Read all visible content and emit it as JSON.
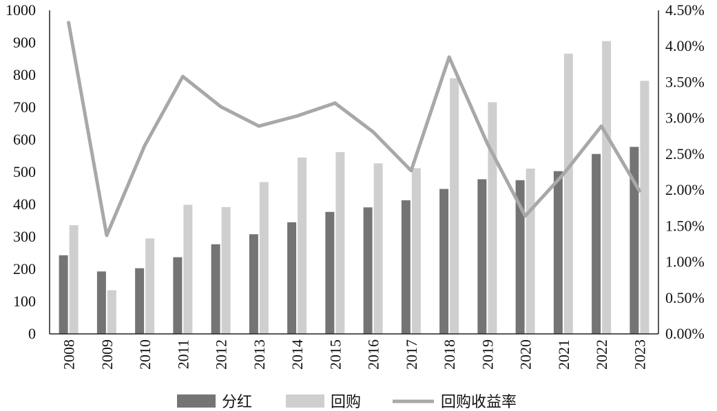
{
  "chart_data": {
    "type": "bar",
    "categories": [
      "2008",
      "2009",
      "2010",
      "2011",
      "2012",
      "2013",
      "2014",
      "2015",
      "2016",
      "2017",
      "2018",
      "2019",
      "2020",
      "2021",
      "2022",
      "2023"
    ],
    "series": [
      {
        "name": "分红",
        "type": "bar",
        "axis": "left",
        "color": "#747474",
        "values": [
          243,
          193,
          203,
          237,
          277,
          308,
          345,
          377,
          391,
          413,
          448,
          478,
          475,
          503,
          556,
          578
        ]
      },
      {
        "name": "回购",
        "type": "bar",
        "axis": "left",
        "color": "#cfcfcf",
        "values": [
          336,
          135,
          295,
          399,
          392,
          469,
          545,
          562,
          527,
          512,
          790,
          716,
          511,
          866,
          905,
          782
        ]
      },
      {
        "name": "回购收益率",
        "type": "line",
        "axis": "right",
        "color": "#a8a8a8",
        "values": [
          0.0433,
          0.0137,
          0.0262,
          0.0358,
          0.0316,
          0.0289,
          0.0303,
          0.0321,
          0.0281,
          0.0227,
          0.0385,
          0.0265,
          0.0164,
          0.0222,
          0.0289,
          0.0199
        ]
      }
    ],
    "ylim": [
      0,
      1000
    ],
    "y_ticks": [
      0,
      100,
      200,
      300,
      400,
      500,
      600,
      700,
      800,
      900,
      1000
    ],
    "y_tick_labels": [
      "0",
      "100",
      "200",
      "300",
      "400",
      "500",
      "600",
      "700",
      "800",
      "900",
      "1000"
    ],
    "y2lim": [
      0,
      0.045
    ],
    "y2_ticks": [
      0,
      0.005,
      0.01,
      0.015,
      0.02,
      0.025,
      0.03,
      0.035,
      0.04,
      0.045
    ],
    "y2_tick_labels": [
      "0.00%",
      "0.50%",
      "1.00%",
      "1.50%",
      "2.00%",
      "2.50%",
      "3.00%",
      "3.50%",
      "4.00%",
      "4.50%"
    ],
    "title": "",
    "xlabel": "",
    "ylabel": "",
    "y2label": "",
    "grid": false,
    "legend_position": "bottom"
  }
}
